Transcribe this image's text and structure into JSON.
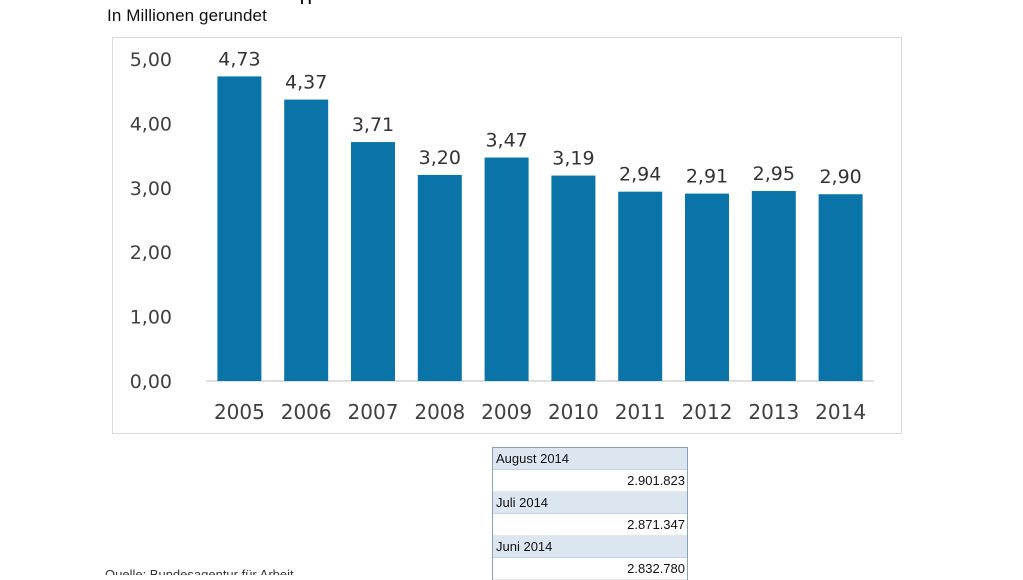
{
  "header": {
    "title_fragment": "g",
    "subtitle": "In Millionen gerundet"
  },
  "chart_data": {
    "type": "bar",
    "categories": [
      "2005",
      "2006",
      "2007",
      "2008",
      "2009",
      "2010",
      "2011",
      "2012",
      "2013",
      "2014"
    ],
    "values": [
      4.73,
      4.37,
      3.71,
      3.2,
      3.47,
      3.19,
      2.94,
      2.91,
      2.95,
      2.9
    ],
    "value_labels": [
      "4,73",
      "4,37",
      "3,71",
      "3,20",
      "3,47",
      "3,19",
      "2,94",
      "2,91",
      "2,95",
      "2,90"
    ],
    "yticks": [
      0,
      1,
      2,
      3,
      4,
      5
    ],
    "ytick_labels": [
      "0,00",
      "1,00",
      "2,00",
      "3,00",
      "4,00",
      "5,00"
    ],
    "ylim": [
      0,
      5
    ],
    "grid": false,
    "bar_color": "#0a74a8",
    "xlabel": "",
    "ylabel": ""
  },
  "monthly_table": [
    {
      "month": "August 2014",
      "value": "2.901.823"
    },
    {
      "month": "Juli 2014",
      "value": "2.871.347"
    },
    {
      "month": "Juni 2014",
      "value": "2.832.780"
    }
  ],
  "source_note": "Quelle: Bundesagentur für Arbeit"
}
